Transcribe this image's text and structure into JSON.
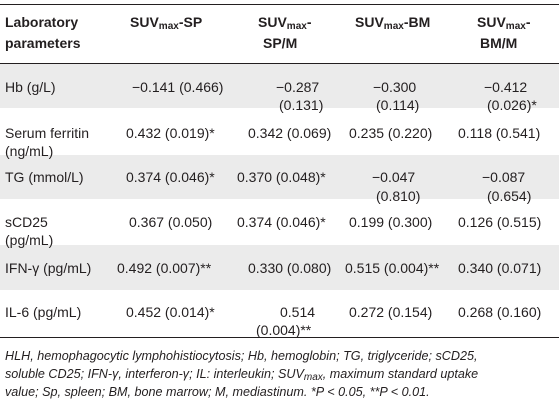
{
  "header": {
    "col0_line1": "Laboratory",
    "col0_line2": "parameters",
    "col1_main": "SUV",
    "col1_sub": "max",
    "col1_rest": "-SP",
    "col2_main": "SUV",
    "col2_sub": "max",
    "col2_rest": "-",
    "col2_line2": "SP/M",
    "col3_main": "SUV",
    "col3_sub": "max",
    "col3_rest": "-BM",
    "col4_main": "SUV",
    "col4_sub": "max",
    "col4_rest": "-",
    "col4_line2": "BM/M"
  },
  "rows": [
    {
      "p1": "Hb (g/L)",
      "p2": "",
      "v1a": "−0.141 (0.466)",
      "v1b": "",
      "v2a": "−0.287",
      "v2b": "(0.131)",
      "v3a": "−0.300",
      "v3b": "(0.114)",
      "v4a": "−0.412",
      "v4b": "(0.026)*"
    },
    {
      "p1": "Serum ferritin",
      "p2": "(ng/mL)",
      "v1a": "0.432 (0.019)*",
      "v1b": "",
      "v2a": "0.342 (0.069)",
      "v2b": "",
      "v3a": "0.235 (0.220)",
      "v3b": "",
      "v4a": "0.118 (0.541)",
      "v4b": ""
    },
    {
      "p1": "TG (mmol/L)",
      "p2": "",
      "v1a": "0.374 (0.046)*",
      "v1b": "",
      "v2a": "0.370 (0.048)*",
      "v2b": "",
      "v3a": "−0.047",
      "v3b": "(0.810)",
      "v4a": "−0.087",
      "v4b": "(0.654)"
    },
    {
      "p1": "sCD25",
      "p2": "(pg/mL)",
      "v1a": "0.367 (0.050)",
      "v1b": "",
      "v2a": "0.374 (0.046)*",
      "v2b": "",
      "v3a": "0.199 (0.300)",
      "v3b": "",
      "v4a": "0.126 (0.515)",
      "v4b": ""
    },
    {
      "p1": "IFN-γ (pg/mL)",
      "p2": "",
      "v1a": "0.492 (0.007)**",
      "v1b": "",
      "v2a": "0.330 (0.080)",
      "v2b": "",
      "v3a": "0.515 (0.004)**",
      "v3b": "",
      "v4a": "0.340 (0.071)",
      "v4b": ""
    },
    {
      "p1": "IL-6 (pg/mL)",
      "p2": "",
      "v1a": "0.452 (0.014)*",
      "v1b": "",
      "v2a": "0.514",
      "v2b": "(0.004)**",
      "v3a": "0.272 (0.154)",
      "v3b": "",
      "v4a": "0.268 (0.160)",
      "v4b": ""
    }
  ],
  "footnote": "HLH, hemophagocytic lymphohistiocytosis; Hb, hemoglobin; TG, triglyceride; sCD25, soluble CD25; IFN-γ, interferon-γ; IL: interleukin; SUVmax, maximum standard uptake value; Sp, spleen; BM, bone marrow; M, mediastinum. *P < 0.05, **P < 0.01.",
  "footnote_parts": {
    "a": "HLH, hemophagocytic lymphohistiocytosis; Hb, hemoglobin; TG, triglyceride; sCD25,",
    "b": "soluble CD25; IFN-γ, interferon-γ; IL: interleukin; SUV",
    "b_sub": "max",
    "b_rest": ", maximum standard uptake",
    "c": "value; Sp, spleen; BM, bone marrow; M, mediastinum. *P < 0.05, **P < 0.01."
  },
  "colors": {
    "rule": "#231f20",
    "stripe": "#ebebeb",
    "text": "#231f20"
  }
}
